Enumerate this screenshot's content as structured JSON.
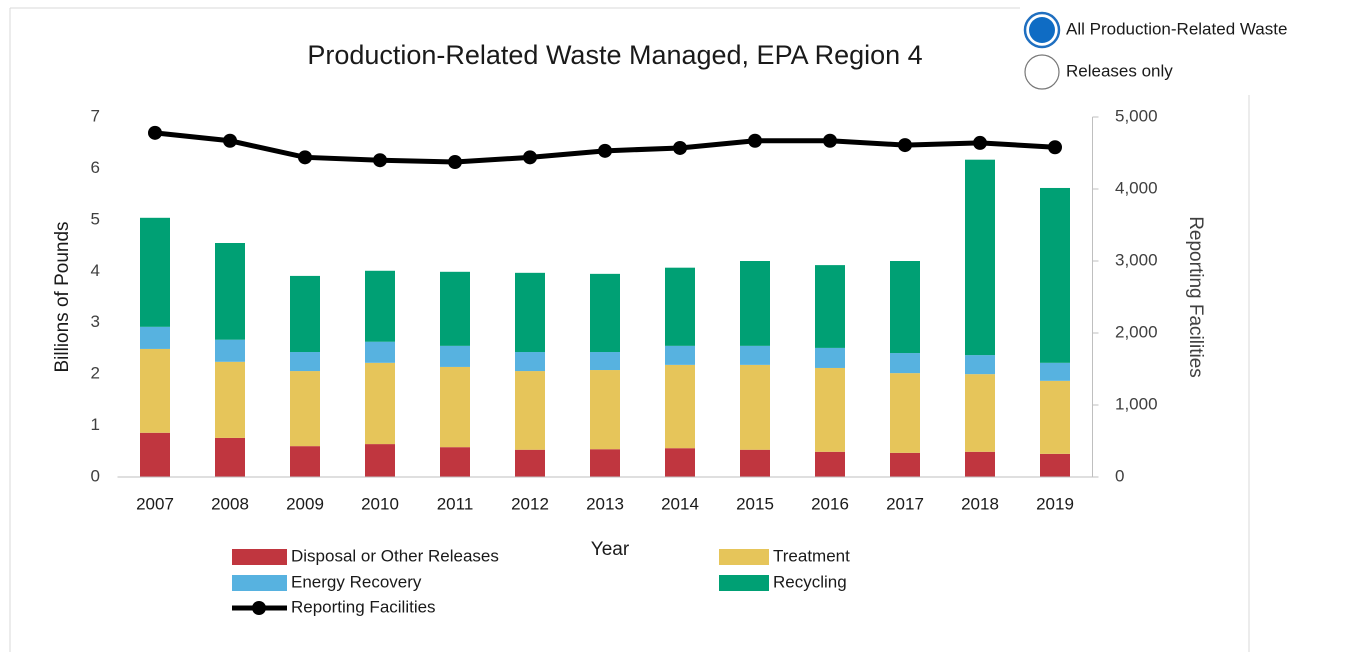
{
  "controls": {
    "options": [
      {
        "label": "All Production-Related Waste",
        "checked": true
      },
      {
        "label": "Releases only",
        "checked": false
      }
    ]
  },
  "chart_data": {
    "type": "bar",
    "stacked": true,
    "title": "Production-Related Waste Managed, EPA Region 4",
    "x_label": "Year",
    "y_label": "Billions of Pounds",
    "y2_label": "Reporting Facilities",
    "categories": [
      "2007",
      "2008",
      "2009",
      "2010",
      "2011",
      "2012",
      "2013",
      "2014",
      "2015",
      "2016",
      "2017",
      "2018",
      "2019"
    ],
    "series": [
      {
        "name": "Disposal or Other Releases",
        "color": "#c0363f",
        "values": [
          0.86,
          0.76,
          0.6,
          0.64,
          0.58,
          0.53,
          0.54,
          0.56,
          0.53,
          0.49,
          0.47,
          0.49,
          0.45
        ]
      },
      {
        "name": "Treatment",
        "color": "#e6c55a",
        "values": [
          1.63,
          1.48,
          1.46,
          1.58,
          1.56,
          1.53,
          1.54,
          1.62,
          1.65,
          1.63,
          1.55,
          1.51,
          1.42
        ]
      },
      {
        "name": "Energy Recovery",
        "color": "#57b2e0",
        "values": [
          0.43,
          0.43,
          0.37,
          0.41,
          0.41,
          0.37,
          0.35,
          0.37,
          0.37,
          0.39,
          0.39,
          0.37,
          0.35
        ]
      },
      {
        "name": "Recycling",
        "color": "#00a074",
        "values": [
          2.12,
          1.88,
          1.48,
          1.38,
          1.44,
          1.54,
          1.52,
          1.52,
          1.65,
          1.61,
          1.79,
          3.8,
          3.4
        ]
      },
      {
        "name": "Reporting Facilities",
        "type": "line",
        "axis": "y2",
        "color": "#000000",
        "values": [
          4780,
          4670,
          4440,
          4400,
          4375,
          4440,
          4530,
          4570,
          4670,
          4670,
          4610,
          4640,
          4580
        ]
      }
    ],
    "ylim": [
      0,
      7
    ],
    "yticks": [
      0,
      1,
      2,
      3,
      4,
      5,
      6,
      7
    ],
    "y2lim": [
      0,
      5000
    ],
    "y2ticks": [
      0,
      {
        "value": 1000,
        "label": "1,000"
      },
      {
        "value": 2000,
        "label": "2,000"
      },
      {
        "value": 3000,
        "label": "3,000"
      },
      {
        "value": 4000,
        "label": "4,000"
      },
      {
        "value": 5000,
        "label": "5,000"
      }
    ],
    "legend": "bottom"
  }
}
